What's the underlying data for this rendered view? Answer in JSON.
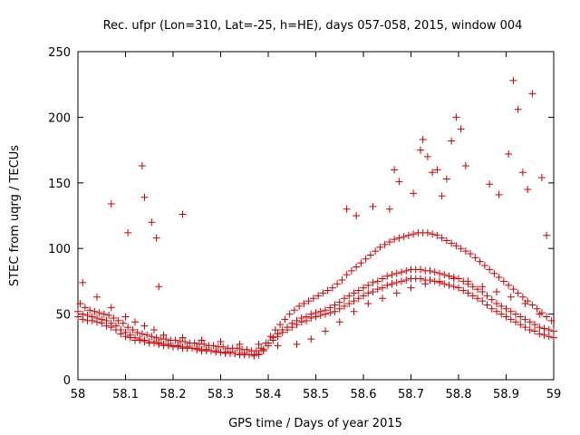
{
  "chart_data": {
    "type": "scatter",
    "title": "Rec. ufpr (Lon=310, Lat=-25, h=HE), days 057-058, 2015, window 004",
    "xlabel": "GPS time / Days of year 2015",
    "ylabel": "STEC from uqrg / TECUs",
    "xlim": [
      58,
      59
    ],
    "ylim": [
      0,
      250
    ],
    "x_ticks": [
      58,
      58.1,
      58.2,
      58.3,
      58.4,
      58.5,
      58.6,
      58.7,
      58.8,
      58.9,
      59
    ],
    "x_tick_labels": [
      "58",
      "58.1",
      "58.2",
      "58.3",
      "58.4",
      "58.5",
      "58.6",
      "58.7",
      "58.8",
      "58.9",
      "59"
    ],
    "y_ticks": [
      0,
      50,
      100,
      150,
      200,
      250
    ],
    "y_tick_labels": [
      "0",
      "50",
      "100",
      "150",
      "200",
      "250"
    ],
    "grid": false,
    "legend": "none",
    "marker": "+",
    "color": "#cc0000",
    "series": [
      {
        "x": [
          58.0,
          58.01,
          58.02,
          58.03,
          58.04,
          58.05,
          58.06,
          58.07,
          58.08,
          58.09,
          58.1,
          58.11,
          58.12,
          58.13,
          58.14,
          58.15,
          58.16,
          58.17,
          58.18,
          58.19,
          58.2,
          58.21,
          58.22,
          58.23,
          58.24,
          58.25,
          58.26,
          58.27,
          58.28,
          58.29,
          58.3,
          58.31,
          58.32,
          58.33,
          58.34,
          58.35,
          58.36,
          58.37,
          58.38,
          58.39,
          58.4,
          58.41,
          58.42,
          58.43,
          58.44,
          58.45,
          58.46,
          58.47,
          58.48,
          58.49,
          58.5,
          58.51,
          58.52,
          58.53,
          58.54,
          58.55,
          58.56,
          58.57,
          58.58,
          58.59,
          58.6,
          58.61,
          58.62,
          58.63,
          58.64,
          58.65,
          58.66,
          58.67,
          58.68,
          58.69,
          58.7,
          58.71,
          58.72,
          58.73,
          58.74,
          58.75,
          58.76,
          58.77,
          58.78,
          58.79,
          58.8,
          58.81,
          58.82,
          58.83,
          58.84,
          58.85,
          58.86,
          58.87,
          58.88,
          58.89,
          58.9,
          58.91,
          58.92,
          58.93,
          58.94,
          58.95,
          58.96,
          58.97,
          58.98,
          58.99,
          59.0,
          58.0,
          58.01,
          58.02,
          58.03,
          58.04,
          58.05,
          58.06,
          58.07,
          58.08,
          58.09,
          58.1,
          58.11,
          58.12,
          58.13,
          58.14,
          58.15,
          58.16,
          58.17,
          58.18,
          58.19,
          58.2,
          58.21,
          58.22,
          58.23,
          58.24,
          58.25,
          58.26,
          58.27,
          58.28,
          58.29,
          58.3,
          58.31,
          58.32,
          58.33,
          58.34,
          58.35,
          58.36,
          58.37,
          58.38,
          58.39,
          58.4,
          58.41,
          58.42,
          58.43,
          58.44,
          58.45,
          58.46,
          58.47,
          58.48,
          58.49,
          58.5,
          58.51,
          58.52,
          58.53,
          58.54,
          58.55,
          58.56,
          58.57,
          58.58,
          58.59,
          58.6,
          58.61,
          58.62,
          58.63,
          58.64,
          58.65,
          58.66,
          58.67,
          58.68,
          58.69,
          58.7,
          58.71,
          58.72,
          58.73,
          58.74,
          58.75,
          58.76,
          58.77,
          58.78,
          58.79,
          58.8,
          58.81,
          58.82,
          58.83,
          58.84,
          58.85,
          58.86,
          58.87,
          58.88,
          58.89,
          58.9,
          58.91,
          58.92,
          58.93,
          58.94,
          58.95,
          58.96,
          58.97,
          58.98,
          58.99,
          59.0,
          58.005,
          58.015,
          58.025,
          58.035,
          58.045,
          58.055,
          58.065,
          58.075,
          58.085,
          58.095,
          58.105,
          58.115,
          58.125,
          58.135,
          58.145,
          58.155,
          58.165,
          58.175,
          58.185,
          58.195,
          58.205,
          58.215,
          58.225,
          58.235,
          58.245,
          58.255,
          58.265,
          58.275,
          58.285,
          58.295,
          58.305,
          58.315,
          58.325,
          58.335,
          58.345,
          58.355,
          58.365,
          58.375,
          58.385,
          58.395,
          58.405,
          58.415,
          58.425,
          58.435,
          58.445,
          58.455,
          58.465,
          58.475,
          58.485,
          58.495,
          58.505,
          58.515,
          58.525,
          58.535,
          58.545,
          58.555,
          58.565,
          58.575,
          58.585,
          58.595,
          58.605,
          58.615,
          58.625,
          58.635,
          58.645,
          58.655,
          58.665,
          58.675,
          58.685,
          58.695,
          58.705,
          58.715,
          58.725,
          58.735,
          58.745,
          58.755,
          58.765,
          58.775,
          58.785,
          58.795,
          58.805,
          58.815,
          58.825,
          58.835,
          58.845,
          58.855,
          58.865,
          58.875,
          58.885,
          58.895,
          58.905,
          58.915,
          58.925,
          58.935,
          58.945,
          58.955,
          58.965,
          58.975,
          58.985,
          58.995,
          58.01,
          58.04,
          58.07,
          58.1,
          58.12,
          58.14,
          58.16,
          58.18,
          58.22,
          58.26,
          58.3,
          58.34,
          58.38,
          58.42,
          58.46,
          58.49,
          58.52,
          58.55,
          58.58,
          58.61,
          58.64,
          58.67,
          58.7,
          58.73,
          58.76,
          58.79,
          58.82,
          58.85,
          58.88,
          58.91,
          58.94,
          58.97,
          58.07,
          58.105,
          58.135,
          58.14,
          58.155,
          58.165,
          58.17,
          58.22,
          58.565,
          58.585,
          58.62,
          58.655,
          58.665,
          58.675,
          58.705,
          58.72,
          58.725,
          58.735,
          58.745,
          58.755,
          58.765,
          58.775,
          58.785,
          58.795,
          58.805,
          58.815,
          58.865,
          58.885,
          58.905,
          58.915,
          58.925,
          58.935,
          58.945,
          58.955,
          58.975,
          58.985
        ],
        "y": [
          48,
          46,
          45,
          45,
          44,
          43,
          41,
          40,
          38,
          35,
          33,
          32,
          30,
          30,
          29,
          28,
          28,
          27,
          26,
          26,
          25,
          25,
          24,
          24,
          24,
          23,
          22,
          22,
          22,
          21,
          21,
          20,
          20,
          20,
          19,
          19,
          19,
          18,
          19,
          22,
          26,
          30,
          33,
          36,
          38,
          40,
          42,
          44,
          45,
          47,
          48,
          49,
          50,
          51,
          52,
          54,
          56,
          58,
          60,
          62,
          64,
          66,
          67,
          69,
          70,
          72,
          73,
          74,
          75,
          76,
          77,
          77,
          77,
          76,
          76,
          75,
          74,
          73,
          72,
          71,
          70,
          68,
          66,
          64,
          62,
          60,
          57,
          54,
          52,
          50,
          48,
          46,
          44,
          42,
          40,
          38,
          37,
          35,
          34,
          33,
          32,
          52,
          50,
          49,
          48,
          47,
          46,
          45,
          43,
          41,
          38,
          36,
          34,
          32,
          31,
          30,
          29,
          29,
          28,
          27,
          27,
          26,
          26,
          25,
          25,
          24,
          24,
          23,
          23,
          22,
          22,
          21,
          21,
          21,
          20,
          20,
          20,
          19,
          19,
          20,
          23,
          28,
          32,
          35,
          38,
          40,
          43,
          45,
          47,
          48,
          50,
          51,
          52,
          53,
          55,
          57,
          59,
          62,
          64,
          66,
          68,
          70,
          72,
          74,
          75,
          77,
          79,
          80,
          81,
          82,
          83,
          84,
          84,
          84,
          83,
          83,
          82,
          81,
          80,
          79,
          78,
          77,
          75,
          73,
          71,
          69,
          67,
          64,
          61,
          58,
          56,
          54,
          52,
          50,
          48,
          46,
          44,
          42,
          40,
          39,
          38,
          37,
          58,
          55,
          53,
          52,
          51,
          50,
          49,
          47,
          45,
          43,
          40,
          38,
          36,
          35,
          34,
          33,
          32,
          31,
          31,
          30,
          30,
          29,
          29,
          28,
          28,
          27,
          27,
          26,
          26,
          25,
          25,
          24,
          24,
          24,
          23,
          23,
          22,
          22,
          24,
          28,
          33,
          38,
          42,
          46,
          50,
          53,
          56,
          58,
          60,
          62,
          64,
          66,
          68,
          70,
          73,
          76,
          80,
          83,
          86,
          89,
          92,
          95,
          98,
          101,
          103,
          105,
          107,
          108,
          109,
          110,
          111,
          112,
          112,
          112,
          111,
          110,
          108,
          106,
          104,
          102,
          100,
          98,
          96,
          93,
          90,
          87,
          84,
          81,
          78,
          75,
          72,
          69,
          66,
          63,
          60,
          57,
          54,
          51,
          48,
          45,
          74,
          63,
          55,
          48,
          44,
          41,
          38,
          34,
          32,
          30,
          29,
          27,
          27,
          26,
          27,
          31,
          37,
          44,
          52,
          58,
          62,
          66,
          70,
          73,
          75,
          77,
          75,
          71,
          67,
          63,
          58,
          50,
          134,
          112,
          163,
          139,
          120,
          108,
          71,
          126,
          130,
          125,
          132,
          130,
          160,
          151,
          142,
          175,
          183,
          170,
          158,
          160,
          140,
          153,
          182,
          200,
          191,
          163,
          149,
          141,
          172,
          228,
          206,
          158,
          145,
          218,
          154,
          110
        ]
      }
    ]
  }
}
